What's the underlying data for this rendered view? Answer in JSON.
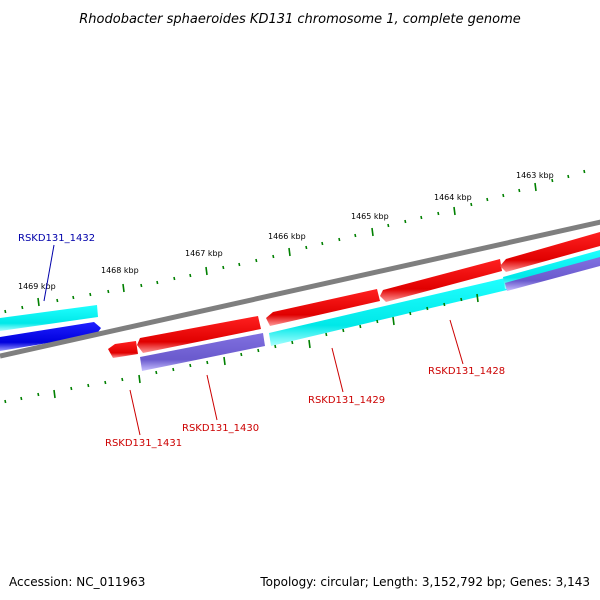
{
  "title": "Rhodobacter sphaeroides KD131 chromosome 1, complete genome",
  "accession": "Accession: NC_011963",
  "topology": "Topology: circular; Length: 3,152,792 bp; Genes: 3,143",
  "scale_labels": [
    "1463 kbp",
    "1464 kbp",
    "1465 kbp",
    "1466 kbp",
    "1467 kbp",
    "1468 kbp",
    "1469 kbp"
  ],
  "genes": [
    {
      "label": "RSKD131_1432",
      "color": "#0000aa"
    },
    {
      "label": "RSKD131_1428",
      "color": "#cc0000"
    },
    {
      "label": "RSKD131_1429",
      "color": "#cc0000"
    },
    {
      "label": "RSKD131_1430",
      "color": "#cc0000"
    },
    {
      "label": "RSKD131_1431",
      "color": "#cc0000"
    }
  ],
  "colors": {
    "backbone": "#808080",
    "forward_cds": "#ff0000",
    "reverse_cds": "#00ffff",
    "rna": "#0000ff",
    "other": "#7b68ee",
    "ticks": "#008000"
  }
}
